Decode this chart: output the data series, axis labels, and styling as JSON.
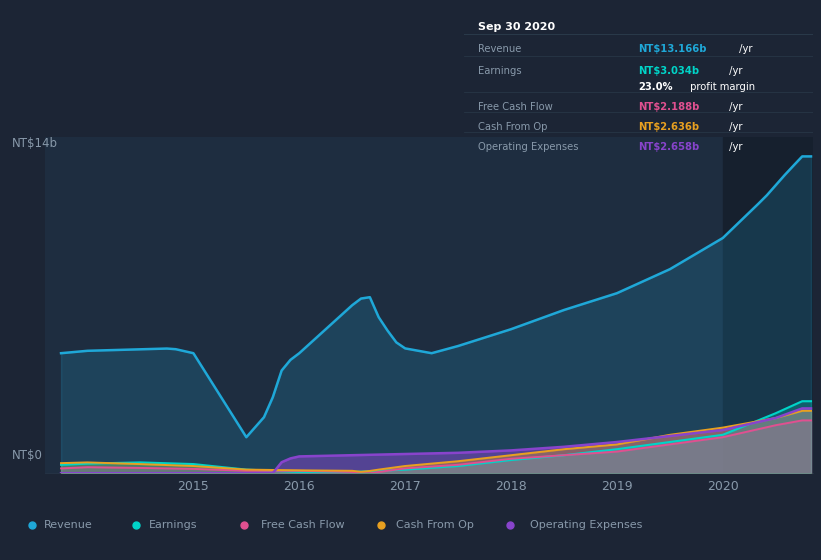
{
  "bg_outer": "#1c2535",
  "bg_chart": "#1e2d40",
  "bg_dark_right": "#16202e",
  "grid_color": "#263548",
  "text_color": "#8899aa",
  "y_label_top": "NT$14b",
  "y_label_bottom": "NT$0",
  "x_ticks": [
    "2015",
    "2016",
    "2017",
    "2018",
    "2019",
    "2020"
  ],
  "x_tick_pos": [
    2015.0,
    2016.0,
    2017.0,
    2018.0,
    2019.0,
    2020.0
  ],
  "colors": {
    "revenue": "#1fa8d8",
    "earnings": "#00d4c8",
    "free_cash_flow": "#e05090",
    "cash_from_op": "#e8a020",
    "operating_expenses": "#8844cc"
  },
  "legend": [
    {
      "label": "Revenue",
      "color": "#1fa8d8"
    },
    {
      "label": "Earnings",
      "color": "#00d4c8"
    },
    {
      "label": "Free Cash Flow",
      "color": "#e05090"
    },
    {
      "label": "Cash From Op",
      "color": "#e8a020"
    },
    {
      "label": "Operating Expenses",
      "color": "#8844cc"
    }
  ],
  "tooltip": {
    "title": "Sep 30 2020",
    "rows": [
      {
        "label": "Revenue",
        "value": "NT$13.166b",
        "suffix": " /yr",
        "color": "#1fa8d8",
        "sep_after": true
      },
      {
        "label": "Earnings",
        "value": "NT$3.034b",
        "suffix": " /yr",
        "color": "#00d4c8",
        "sep_after": false
      },
      {
        "label": "",
        "value": "23.0%",
        "suffix": " profit margin",
        "color": "#ffffff",
        "sep_after": true
      },
      {
        "label": "Free Cash Flow",
        "value": "NT$2.188b",
        "suffix": " /yr",
        "color": "#e05090",
        "sep_after": true
      },
      {
        "label": "Cash From Op",
        "value": "NT$2.636b",
        "suffix": " /yr",
        "color": "#e8a020",
        "sep_after": true
      },
      {
        "label": "Operating Expenses",
        "value": "NT$2.658b",
        "suffix": " /yr",
        "color": "#8844cc",
        "sep_after": false
      }
    ]
  },
  "ylim": [
    0,
    14
  ],
  "xlim": [
    2013.6,
    2020.85
  ],
  "highlight_start": 2020.0
}
